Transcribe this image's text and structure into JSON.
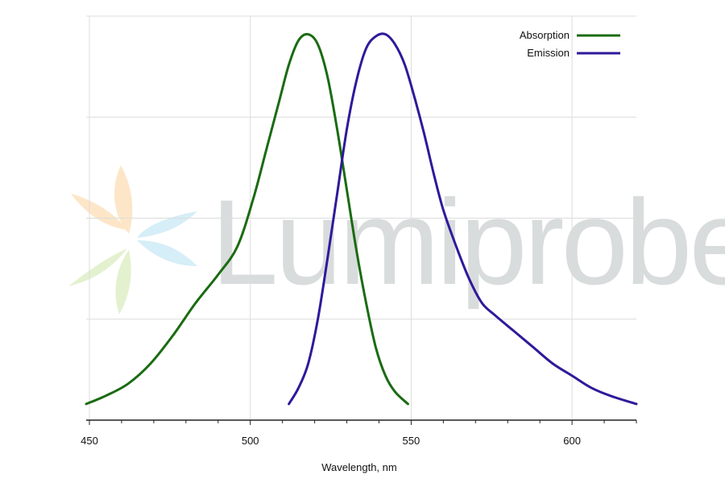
{
  "chart_data": {
    "type": "line",
    "xlabel": "Wavelength, nm",
    "ylabel": "",
    "xlim": [
      449,
      620
    ],
    "ylim": [
      0,
      1.0
    ],
    "xticks": [
      450,
      500,
      550,
      600
    ],
    "grid": true,
    "legend_position": "top-right",
    "series": [
      {
        "name": "Absorption",
        "color": "#1a6b12",
        "x": [
          449,
          455,
          462,
          469,
          476,
          483,
          490,
          496,
          501,
          505,
          509,
          512,
          515,
          518,
          521,
          524,
          527,
          530,
          533,
          536,
          539,
          542,
          545,
          549
        ],
        "y": [
          0.04,
          0.06,
          0.09,
          0.14,
          0.21,
          0.29,
          0.36,
          0.43,
          0.55,
          0.67,
          0.79,
          0.88,
          0.94,
          0.955,
          0.93,
          0.85,
          0.72,
          0.57,
          0.42,
          0.29,
          0.18,
          0.11,
          0.07,
          0.04
        ]
      },
      {
        "name": "Emission",
        "color": "#2e1a9a",
        "x": [
          512,
          515,
          518,
          521,
          524,
          527,
          530,
          533,
          536,
          539,
          542,
          545,
          548,
          551,
          554,
          557,
          560,
          564,
          568,
          572,
          576,
          582,
          588,
          594,
          600,
          606,
          612,
          620
        ],
        "y": [
          0.04,
          0.08,
          0.14,
          0.25,
          0.4,
          0.56,
          0.72,
          0.84,
          0.92,
          0.95,
          0.955,
          0.93,
          0.88,
          0.8,
          0.71,
          0.61,
          0.52,
          0.43,
          0.35,
          0.29,
          0.26,
          0.22,
          0.18,
          0.14,
          0.11,
          0.08,
          0.06,
          0.04
        ]
      }
    ]
  },
  "watermark": {
    "text": "Lumiprobe",
    "icon": "lumiprobe-star-logo"
  }
}
